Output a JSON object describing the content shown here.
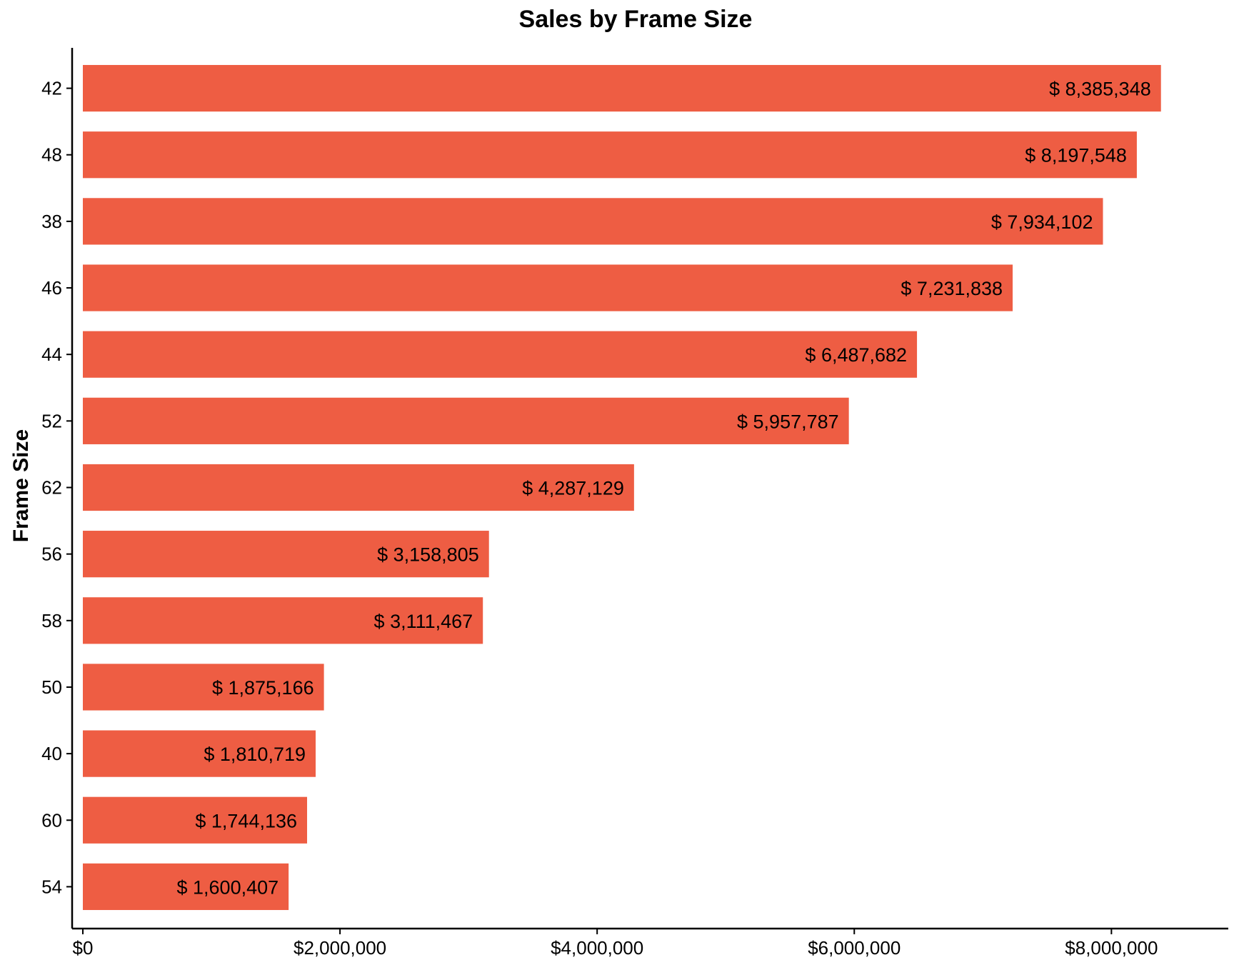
{
  "chart_data": {
    "type": "bar",
    "orientation": "horizontal",
    "title": "Sales by Frame Size",
    "xlabel": "",
    "ylabel": "Frame Size",
    "categories": [
      "42",
      "48",
      "38",
      "46",
      "44",
      "52",
      "62",
      "56",
      "58",
      "50",
      "40",
      "60",
      "54"
    ],
    "values": [
      8385348,
      8197548,
      7934102,
      7231838,
      6487682,
      5957787,
      4287129,
      3158805,
      3111467,
      1875166,
      1810719,
      1744136,
      1600407
    ],
    "data_labels": [
      "$ 8,385,348",
      "$ 8,197,548",
      "$ 7,934,102",
      "$ 7,231,838",
      "$ 6,487,682",
      "$ 5,957,787",
      "$ 4,287,129",
      "$ 3,158,805",
      "$ 3,111,467",
      "$ 1,875,166",
      "$ 1,810,719",
      "$ 1,744,136",
      "$ 1,600,407"
    ],
    "xlim": [
      0,
      8900000
    ],
    "x_ticks": [
      0,
      2000000,
      4000000,
      6000000,
      8000000
    ],
    "x_tick_labels": [
      "$0",
      "$2,000,000",
      "$4,000,000",
      "$6,000,000",
      "$8,000,000"
    ],
    "bar_color": "#EE5D43",
    "grid": false,
    "legend": "none"
  }
}
